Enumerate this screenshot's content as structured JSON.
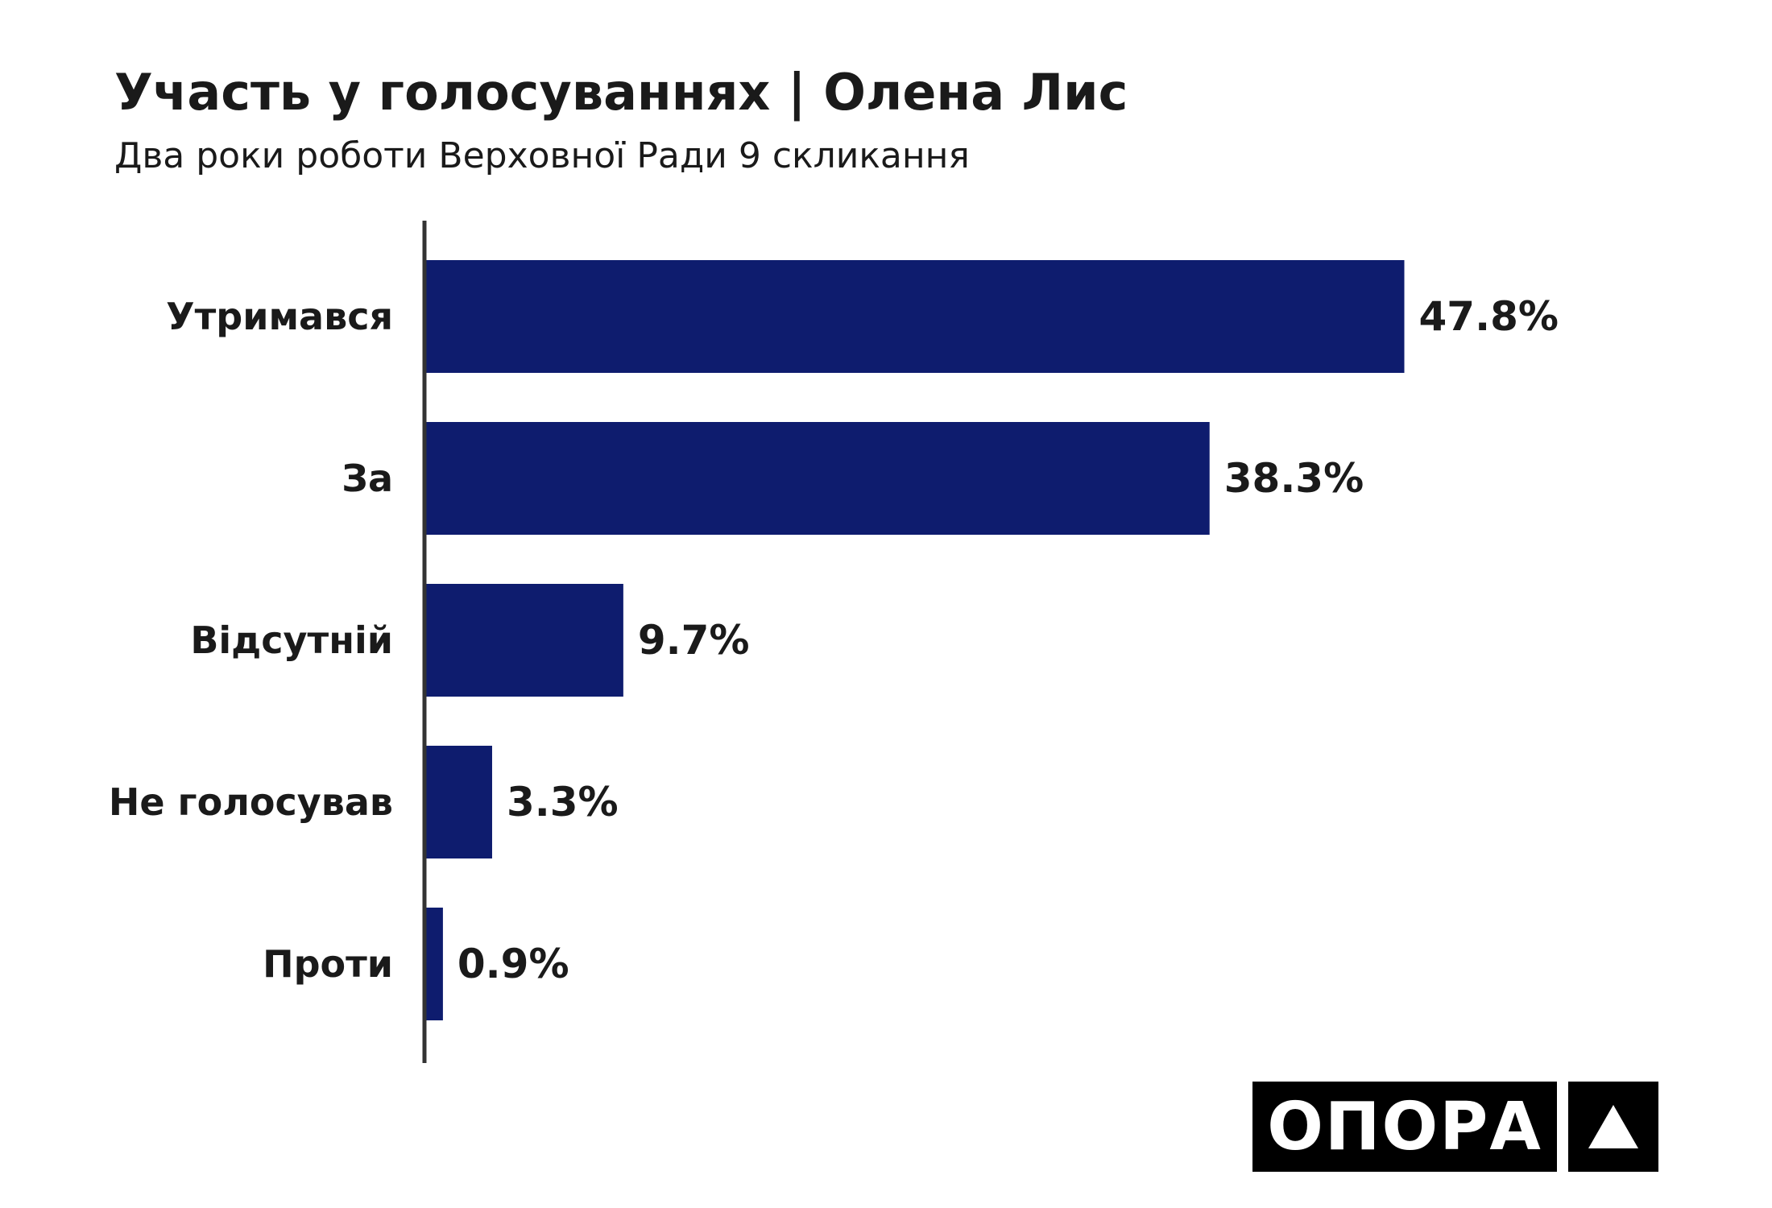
{
  "chart_data": {
    "type": "bar",
    "orientation": "horizontal",
    "title": "Участь у голосуваннях | Олена Лис",
    "subtitle": "Два роки роботи Верховної Ради 9 скликання",
    "categories": [
      "Утримався",
      "За",
      "Відсутній",
      "Не голосував",
      "Проти"
    ],
    "values": [
      47.8,
      38.3,
      9.7,
      3.3,
      0.9
    ],
    "value_labels": [
      "47.8%",
      "38.3%",
      "9.7%",
      "3.3%",
      "0.9%"
    ],
    "xlim": [
      0,
      60
    ],
    "grid": false,
    "bar_color": "#0e1c6e"
  },
  "logo": {
    "text": "ОПОРА",
    "mark": "triangle-icon"
  }
}
